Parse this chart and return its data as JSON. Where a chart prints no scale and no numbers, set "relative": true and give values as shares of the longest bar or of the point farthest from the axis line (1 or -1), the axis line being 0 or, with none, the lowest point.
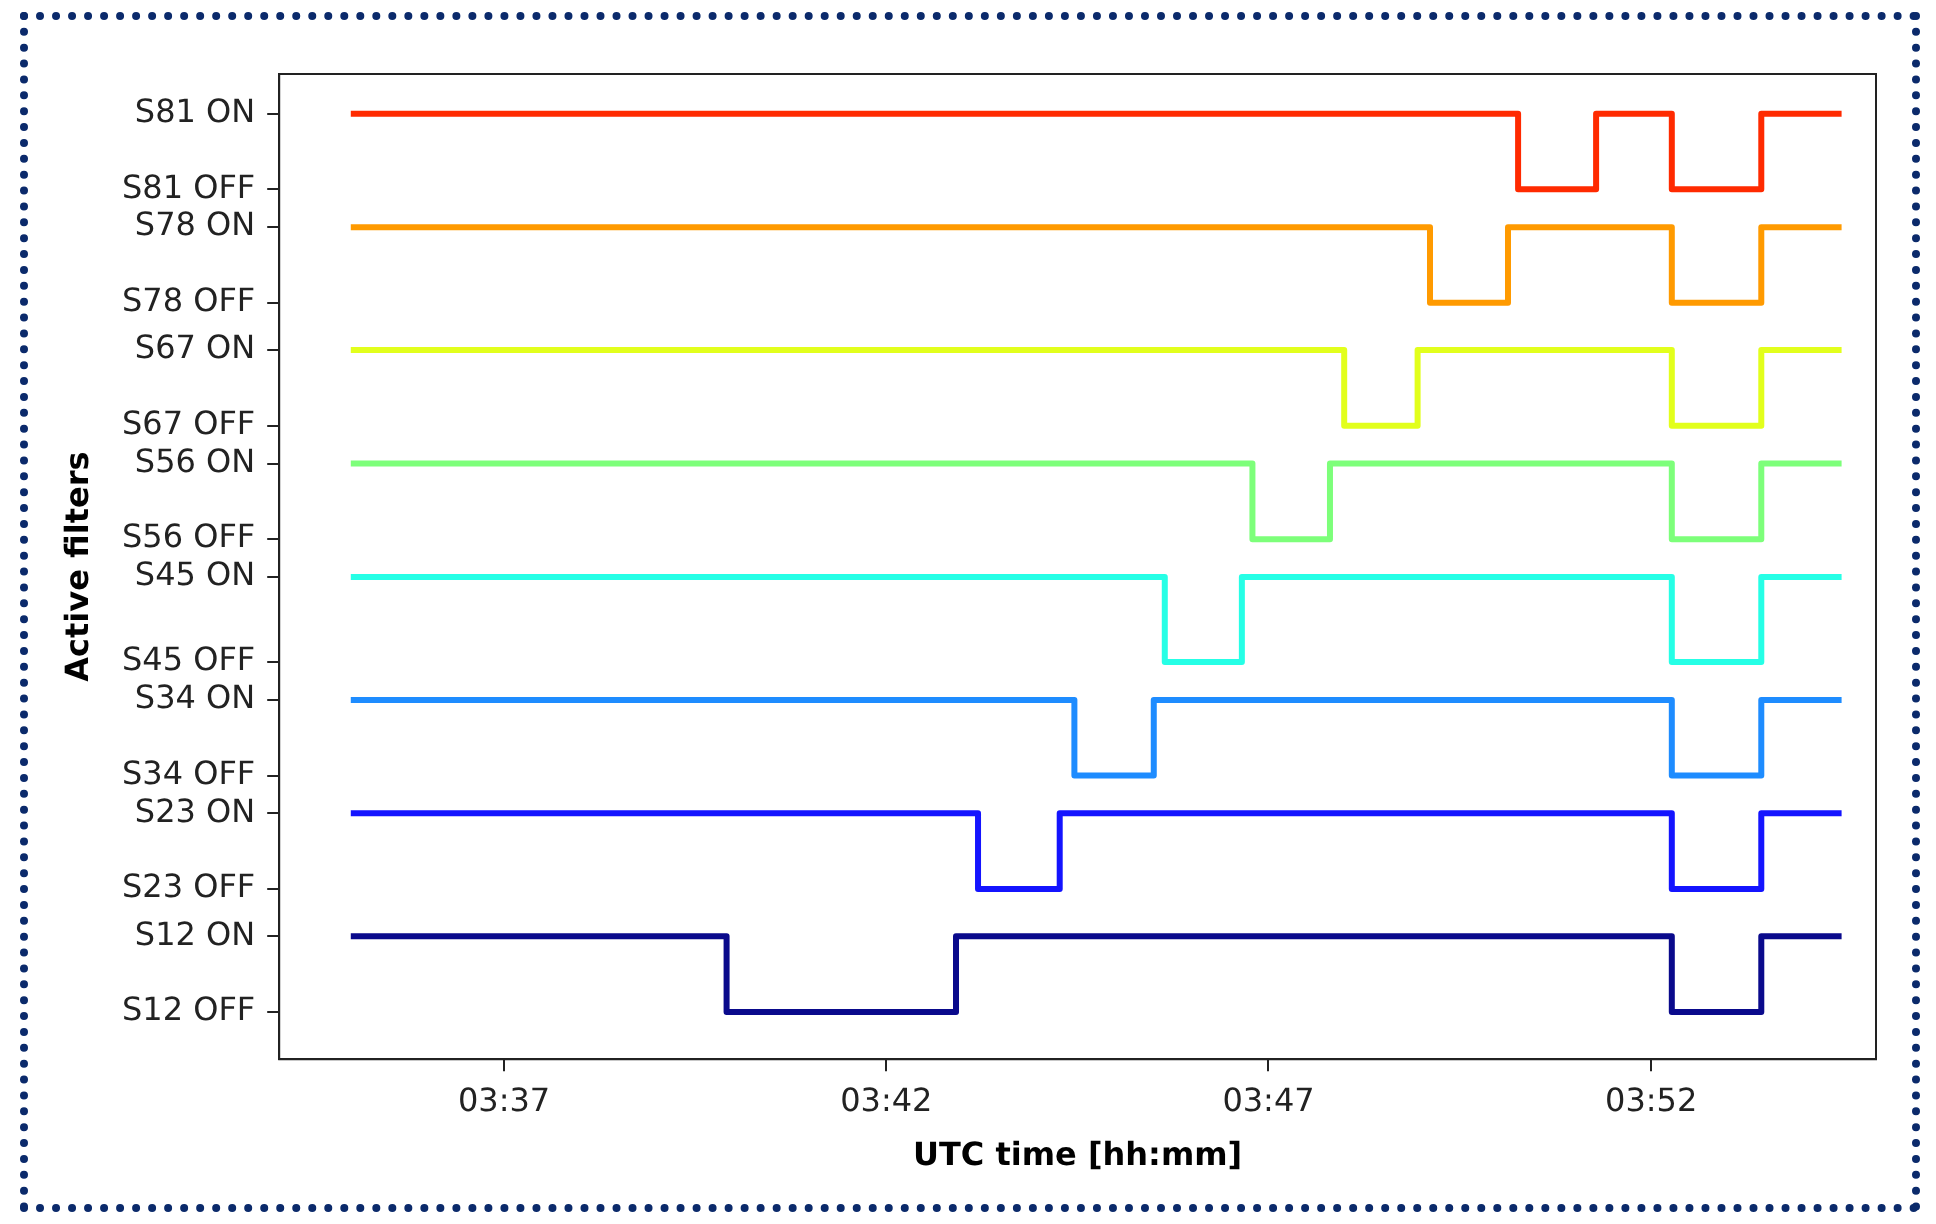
{
  "chart_data": {
    "type": "step",
    "relative": true,
    "xlabel": "UTC time [hh:mm]",
    "xlim": [
      3.5677,
      3.9157
    ],
    "xticks": [
      {
        "value": 3.6167,
        "label": "03:37"
      },
      {
        "value": 3.7,
        "label": "03:42"
      },
      {
        "value": 3.7833,
        "label": "03:47"
      },
      {
        "value": 3.8667,
        "label": "03:52"
      }
    ],
    "annotations": [
      "S12 OFF",
      "S12 ON",
      "S23 OFF",
      "S23 ON",
      "S34 OFF",
      "S34 ON",
      "S45 OFF",
      "S45 ON",
      "S56 OFF",
      "S56 ON",
      "S67 OFF",
      "S67 ON",
      "S78 OFF",
      "S78 ON",
      "S81 OFF",
      "S81 ON",
      "Active filters"
    ],
    "grid": false,
    "legend": false,
    "marker": "none",
    "line_style": "solid",
    "series": [
      {
        "color": "#0a0a8c",
        "x": [
          3.5833,
          3.6652,
          3.7152,
          3.8712,
          3.8907,
          3.9082
        ],
        "values": [
          0.13,
          0.05,
          0.13,
          0.05,
          0.13,
          0.13
        ]
      },
      {
        "color": "#1414ff",
        "x": [
          3.5833,
          3.72,
          3.7378,
          3.8712,
          3.8907,
          3.9082
        ],
        "values": [
          0.26,
          0.18,
          0.26,
          0.18,
          0.26,
          0.26
        ]
      },
      {
        "color": "#1e8cff",
        "x": [
          3.5833,
          3.741,
          3.7583,
          3.8712,
          3.8907,
          3.9082
        ],
        "values": [
          0.38,
          0.3,
          0.38,
          0.3,
          0.38,
          0.38
        ]
      },
      {
        "color": "#26ffe6",
        "x": [
          3.5833,
          3.7607,
          3.7775,
          3.8712,
          3.8907,
          3.9082
        ],
        "values": [
          0.51,
          0.42,
          0.51,
          0.42,
          0.51,
          0.51
        ]
      },
      {
        "color": "#7dff7a",
        "x": [
          3.5833,
          3.7798,
          3.7967,
          3.8712,
          3.8907,
          3.9082
        ],
        "values": [
          0.63,
          0.55,
          0.63,
          0.55,
          0.63,
          0.63
        ]
      },
      {
        "color": "#e2ff1c",
        "x": [
          3.5833,
          3.7998,
          3.8158,
          3.8712,
          3.8907,
          3.9082
        ],
        "values": [
          0.75,
          0.67,
          0.75,
          0.67,
          0.75,
          0.75
        ]
      },
      {
        "color": "#ff9a00",
        "x": [
          3.5833,
          3.8185,
          3.8355,
          3.8712,
          3.8907,
          3.9082
        ],
        "values": [
          0.88,
          0.8,
          0.88,
          0.8,
          0.88,
          0.88
        ]
      },
      {
        "color": "#ff2a00",
        "x": [
          3.5833,
          3.8377,
          3.8547,
          3.8712,
          3.8907,
          3.9082
        ],
        "values": [
          1,
          0.92,
          1,
          0.92,
          1,
          1
        ]
      }
    ]
  }
}
